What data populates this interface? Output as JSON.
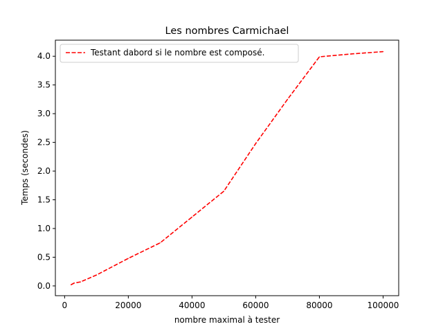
{
  "chart_data": {
    "type": "line",
    "title": "Les nombres Carmichael",
    "xlabel": "nombre maximal à tester",
    "ylabel": "Temps (secondes)",
    "xlim": [
      -2900,
      104900
    ],
    "ylim": [
      -0.17,
      4.28
    ],
    "xticks": [
      0,
      20000,
      40000,
      60000,
      80000,
      100000
    ],
    "xtick_labels": [
      "0",
      "20000",
      "40000",
      "60000",
      "80000",
      "100000"
    ],
    "yticks": [
      0.0,
      0.5,
      1.0,
      1.5,
      2.0,
      2.5,
      3.0,
      3.5,
      4.0
    ],
    "ytick_labels": [
      "0.0",
      "0.5",
      "1.0",
      "1.5",
      "2.0",
      "2.5",
      "3.0",
      "3.5",
      "4.0"
    ],
    "grid": false,
    "legend_position": "upper left",
    "series": [
      {
        "name": "Testant dabord si le nombre est composé.",
        "color": "#ff0000",
        "linestyle": "dashed",
        "x": [
          2000,
          3000,
          5000,
          10000,
          20000,
          30000,
          40000,
          50000,
          60000,
          70000,
          80000,
          90000,
          100000
        ],
        "y": [
          0.02,
          0.05,
          0.07,
          0.19,
          0.48,
          0.75,
          1.2,
          1.65,
          2.48,
          3.25,
          3.99,
          4.04,
          4.08
        ]
      }
    ]
  }
}
